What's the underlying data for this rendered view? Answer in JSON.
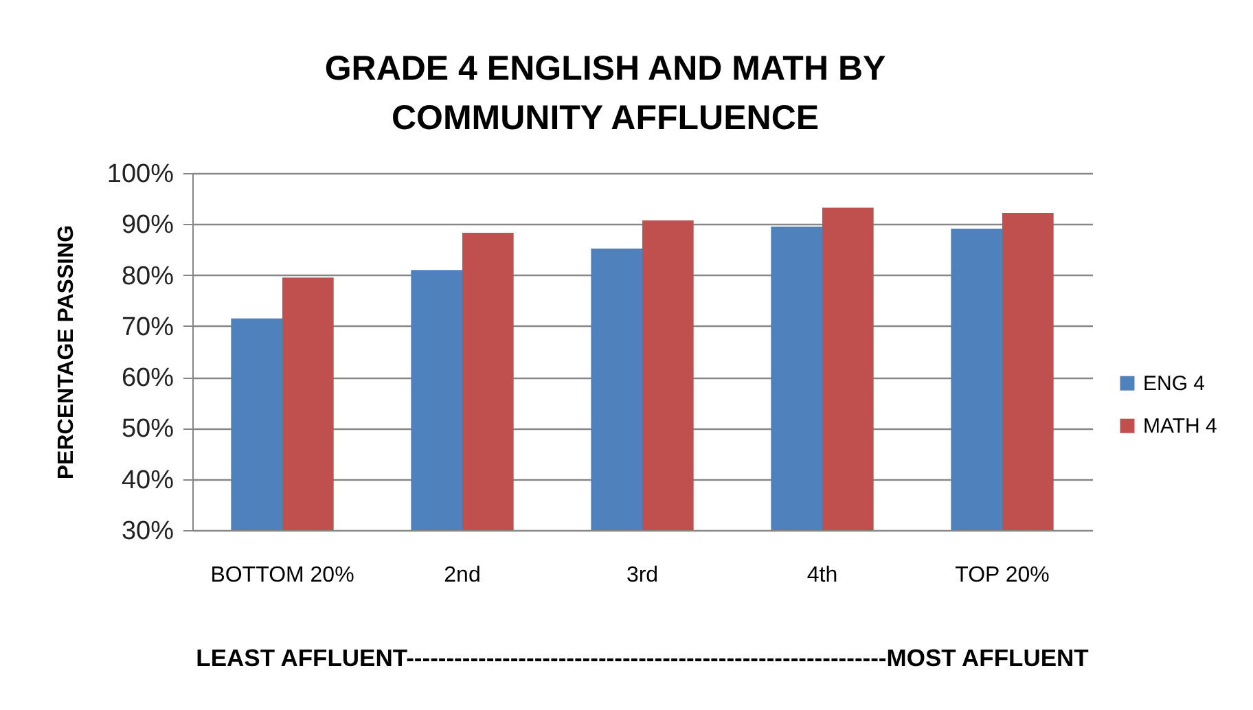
{
  "chart_data": {
    "type": "bar",
    "title": "GRADE 4 ENGLISH AND MATH BY\nCOMMUNITY AFFLUENCE",
    "ylabel": "PERCENTAGE PASSING",
    "categories": [
      "BOTTOM 20%",
      "2nd",
      "3rd",
      "4th",
      "TOP 20%"
    ],
    "series": [
      {
        "name": "ENG 4",
        "color": "#4f81bd",
        "values": [
          71.5,
          81,
          85.2,
          89.5,
          89.1
        ]
      },
      {
        "name": "MATH 4",
        "color": "#c0504d",
        "values": [
          79.5,
          88.3,
          90.7,
          93.2,
          92.2
        ]
      }
    ],
    "ylim": [
      30,
      100
    ],
    "yticks": [
      {
        "value": 30,
        "label": "30%"
      },
      {
        "value": 40,
        "label": "40%"
      },
      {
        "value": 50,
        "label": "50%"
      },
      {
        "value": 60,
        "label": "60%"
      },
      {
        "value": 70,
        "label": "70%"
      },
      {
        "value": 80,
        "label": "80%"
      },
      {
        "value": 90,
        "label": "90%"
      },
      {
        "value": 100,
        "label": "100%"
      }
    ],
    "grid": "y",
    "legend": "right",
    "annotations": [
      "LEAST AFFLUENT------------------------------------------------------------MOST  AFFLUENT"
    ]
  }
}
